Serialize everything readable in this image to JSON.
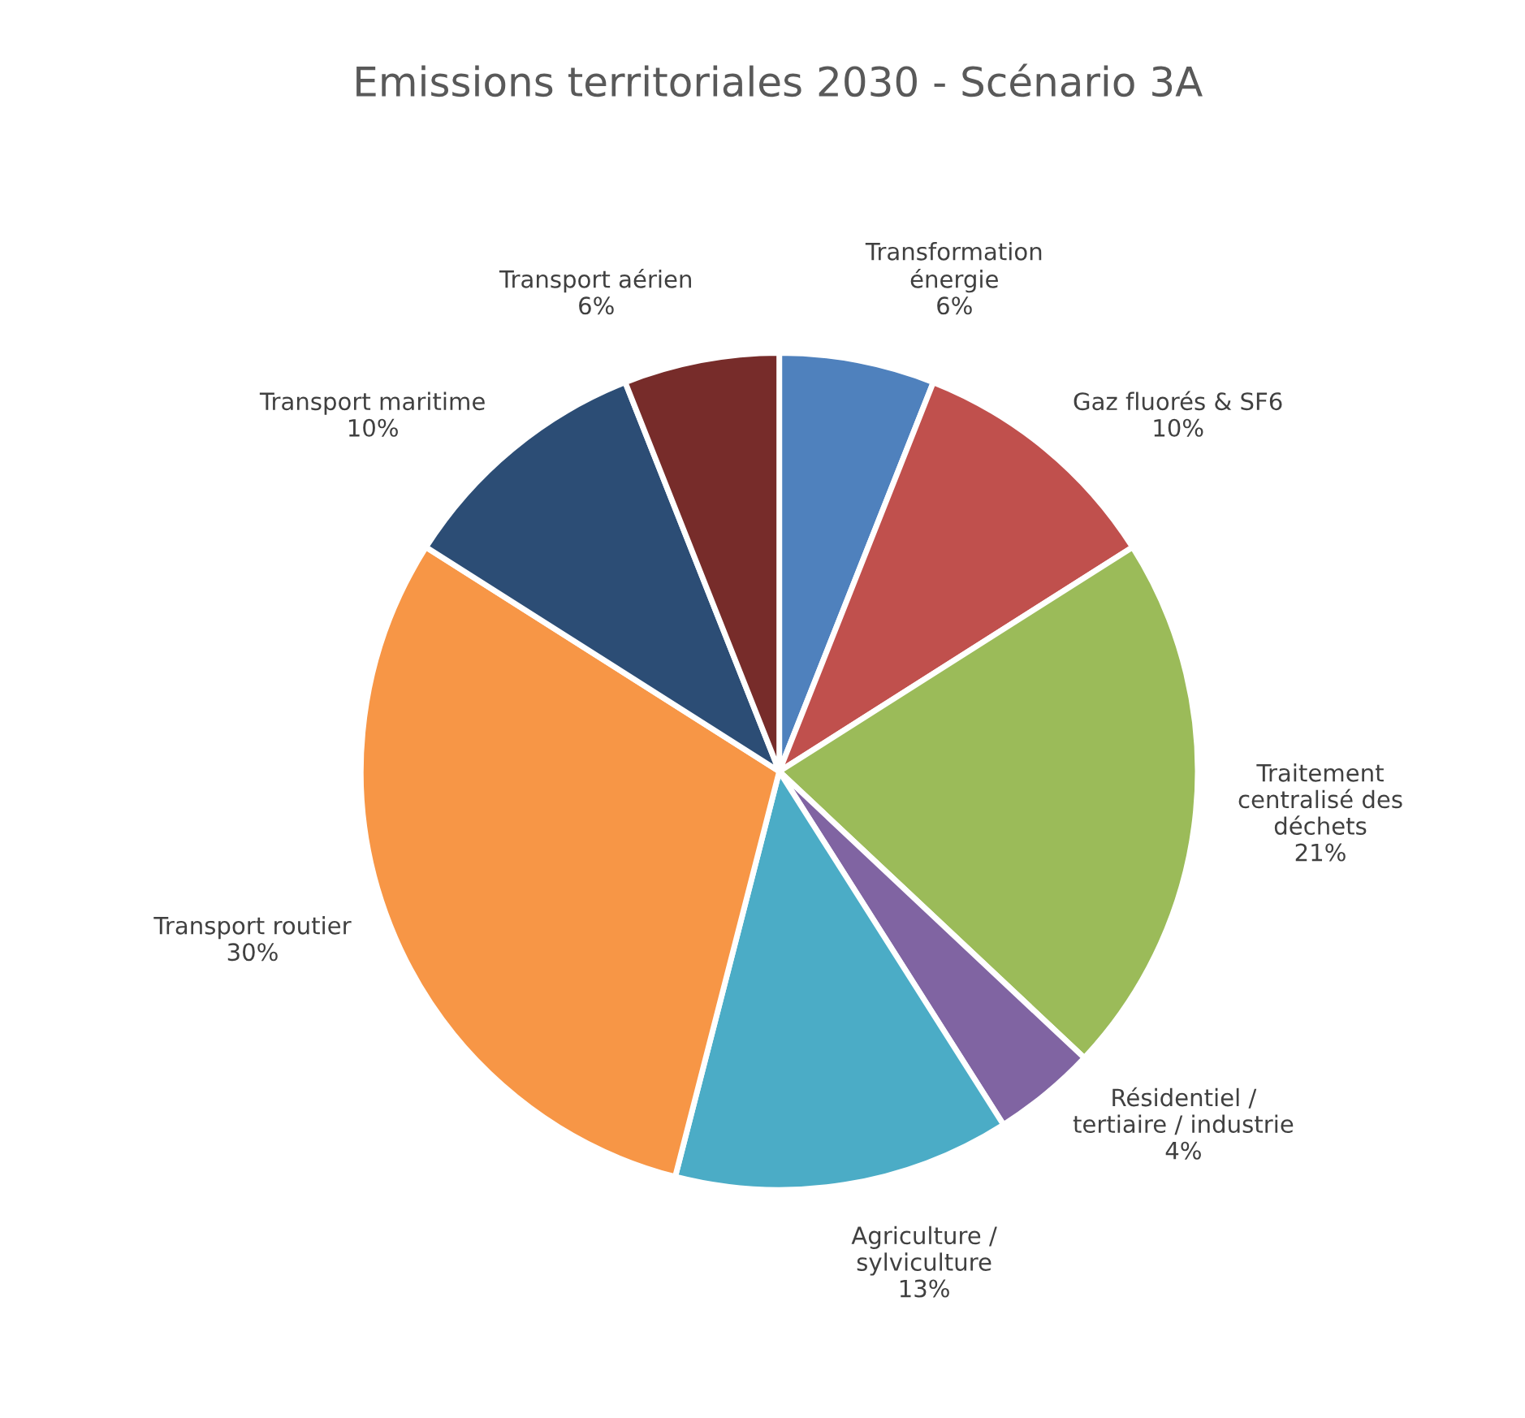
{
  "chart_data": {
    "type": "pie",
    "title": "Emissions territoriales 2030 - Scénario 3A",
    "categories": [
      "Transformation\nénergie",
      "Gaz fluorés & SF6",
      "Traitement\ncentralisé des\ndéchets",
      "Résidentiel /\ntertiaire / industrie",
      "Agriculture /\nsylviculture",
      "Transport routier",
      "Transport maritime",
      "Transport aérien"
    ],
    "values": [
      6,
      10,
      21,
      4,
      13,
      30,
      10,
      6
    ],
    "value_labels": [
      "6%",
      "10%",
      "21%",
      "4%",
      "13%",
      "30%",
      "10%",
      "6%"
    ],
    "colors": [
      "#4f81bd",
      "#c0504d",
      "#9bbb59",
      "#8064a2",
      "#4bacc6",
      "#f79646",
      "#2c4d75",
      "#772c2a"
    ]
  }
}
